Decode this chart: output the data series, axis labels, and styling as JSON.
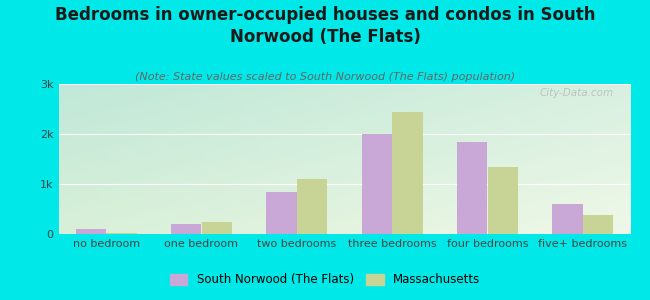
{
  "title": "Bedrooms in owner-occupied houses and condos in South\nNorwood (The Flats)",
  "subtitle": "(Note: State values scaled to South Norwood (The Flats) population)",
  "categories": [
    "no bedroom",
    "one bedroom",
    "two bedrooms",
    "three bedrooms",
    "four bedrooms",
    "five+ bedrooms"
  ],
  "south_norwood": [
    100,
    200,
    850,
    2000,
    1850,
    600
  ],
  "massachusetts": [
    30,
    250,
    1100,
    2450,
    1350,
    380
  ],
  "south_norwood_color": "#c9a8d8",
  "massachusetts_color": "#c8d496",
  "background_color": "#00e8e8",
  "ylim": [
    0,
    3000
  ],
  "yticks": [
    0,
    1000,
    2000,
    3000
  ],
  "ytick_labels": [
    "0",
    "1k",
    "2k",
    "3k"
  ],
  "legend_label_sn": "South Norwood (The Flats)",
  "legend_label_ma": "Massachusetts",
  "watermark": "City-Data.com",
  "title_fontsize": 12,
  "subtitle_fontsize": 8,
  "axis_fontsize": 8,
  "bar_width": 0.32
}
